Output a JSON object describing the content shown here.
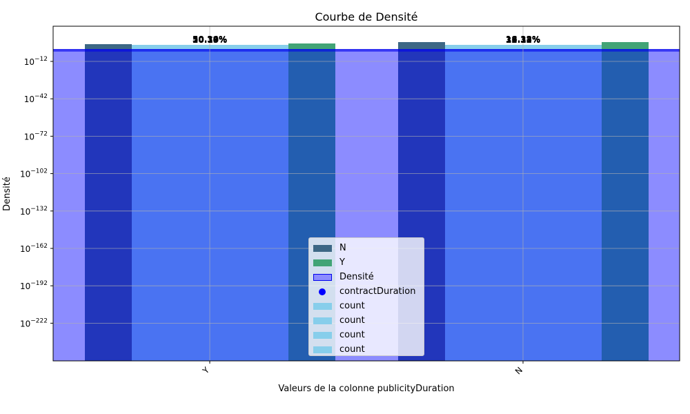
{
  "chart_data": {
    "type": "bar",
    "title": "Courbe de Densité",
    "xlabel": "Valeurs de la colonne publicityDuration",
    "ylabel": "Densité",
    "y_scale": "log",
    "categories": [
      "Y",
      "N"
    ],
    "ytick_exponents": [
      -12,
      -42,
      -72,
      -102,
      -132,
      -162,
      -192,
      -222
    ],
    "ytick_base": "10",
    "grid": true,
    "legend_position": "lower center",
    "series": [
      {
        "name": "N",
        "type": "bar",
        "color": "#3d6785",
        "values": [
          0.3,
          0.5
        ]
      },
      {
        "name": "Y",
        "type": "bar",
        "color": "#42a476",
        "values": [
          0.5,
          1.0
        ]
      },
      {
        "name": "Densité",
        "type": "area",
        "color": "#8c8cff",
        "edge_color": "#0000ee"
      },
      {
        "name": "contractDuration",
        "type": "scatter",
        "color": "#0000ff"
      },
      {
        "name": "count",
        "type": "bar",
        "color": "#87ceeb"
      },
      {
        "name": "count",
        "type": "bar",
        "color": "#87ceeb"
      },
      {
        "name": "count",
        "type": "bar",
        "color": "#87ceeb"
      },
      {
        "name": "count",
        "type": "bar",
        "color": "#87ceeb"
      }
    ],
    "annotations": [
      {
        "category": "Y",
        "labels": [
          "30.19%",
          "20.15%",
          "50.34%",
          "50.70%"
        ]
      },
      {
        "category": "N",
        "labels": [
          "16.33%",
          "33.33%",
          "18.18%",
          "12.12%"
        ]
      }
    ]
  }
}
